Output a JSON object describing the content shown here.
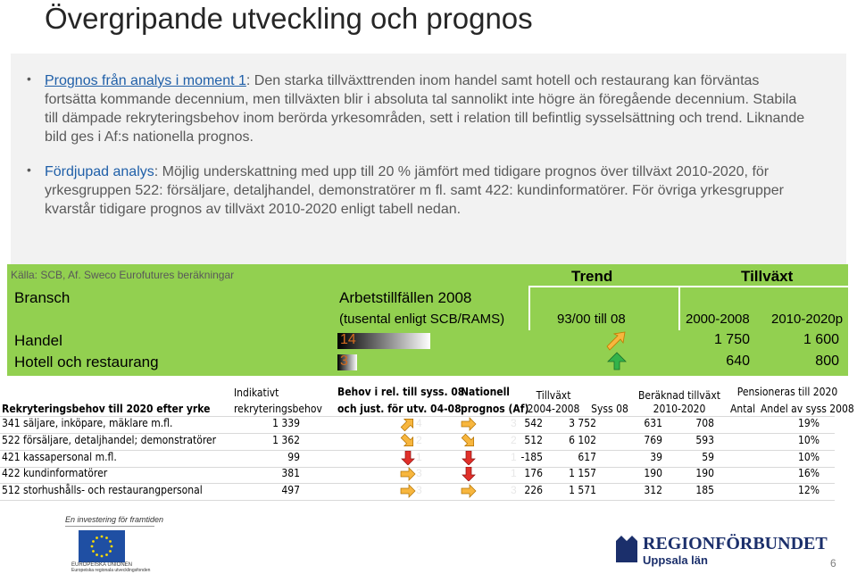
{
  "title": "Övergripande utveckling och prognos",
  "bullets": [
    {
      "lead": "Prognos från analys i moment 1",
      "text": ": Den starka tillväxttrenden inom handel samt hotell och restaurang kan förväntas fortsätta kommande decennium, men tillväxten blir i absoluta tal sannolikt inte högre än föregående decennium. Stabila till dämpade rekryteringsbehov inom berörda yrkesområden, sett i relation till befintlig sysselsättning och trend. Liknande bild ges i Af:s nationella prognos."
    },
    {
      "lead": "Fördjupad analys",
      "text": ": Möjlig underskattning med upp till 20 % jämfört med tidigare prognos över tillväxt 2010-2020, för yrkesgruppen 522: försäljare, detaljhandel, demonstratörer m fl. samt 422: kundinformatörer. För övriga yrkesgrupper kvarstår tidigare prognos av tillväxt 2010-2020 enligt tabell nedan."
    }
  ],
  "source": "Källa: SCB, Af. Sweco Eurofutures beräkningar",
  "sector_table": {
    "header_trend": "Trend",
    "header_growth": "Tillväxt",
    "col_bransch": "Bransch",
    "col_jobs": "Arbetstillfällen 2008",
    "col_jobs_unit": "(tusental enligt SCB/RAMS)",
    "col_trend": "93/00 till 08",
    "col_growth_1": "2000-2008",
    "col_growth_2": "2010-2020p",
    "rows": [
      {
        "name": "Handel",
        "jobs": 14,
        "growth_1": "1 750",
        "growth_2": "1 600"
      },
      {
        "name": "Hotell och restaurang",
        "jobs": 3,
        "growth_1": "640",
        "growth_2": "800"
      }
    ]
  },
  "recruit_table": {
    "header_occupation": "Rekryteringsbehov till 2020 efter yrke",
    "header_indicative": [
      "Indikativt",
      "rekryteringsbehov"
    ],
    "header_need": [
      "Behov i rel. till syss. 08",
      "och just. för utv. 04-08"
    ],
    "header_national": [
      "Nationell",
      "prognos (Af)"
    ],
    "header_growth": [
      "Tillväxt",
      "2004-2008"
    ],
    "header_employed": "Syss 08",
    "header_forecast": [
      "Beräknad tillväxt",
      "2010-2020"
    ],
    "header_retire": "Pensioneras till 2020",
    "header_retire_count": "Antal",
    "header_retire_share": "Andel av syss 2008",
    "rows": [
      {
        "name": "341 säljare, inköpare, mäklare m.fl.",
        "indicative": "1 339",
        "need": 4,
        "national": 3,
        "growth": "542",
        "employed": "3 752",
        "forecast": "631",
        "retire_count": "708",
        "retire_share": "19%"
      },
      {
        "name": "522 försäljare, detaljhandel; demonstratörer",
        "indicative": "1 362",
        "need": 2,
        "national": 2,
        "growth": "512",
        "employed": "6 102",
        "forecast": "769",
        "retire_count": "593",
        "retire_share": "10%"
      },
      {
        "name": "421 kassapersonal m.fl.",
        "indicative": "99",
        "need": 1,
        "national": 1,
        "growth": "-185",
        "employed": "617",
        "forecast": "39",
        "retire_count": "59",
        "retire_share": "10%"
      },
      {
        "name": "422 kundinformatörer",
        "indicative": "381",
        "need": 3,
        "national": 1,
        "growth": "176",
        "employed": "1 157",
        "forecast": "190",
        "retire_count": "190",
        "retire_share": "16%"
      },
      {
        "name": "512 storhushålls- och restaurangpersonal",
        "indicative": "497",
        "need": 3,
        "national": 3,
        "growth": "226",
        "employed": "1 571",
        "forecast": "312",
        "retire_count": "185",
        "retire_share": "12%"
      }
    ]
  },
  "footer": {
    "eu_slogan": "En investering för framtiden",
    "eu_name": "EUROPEISKA UNIONEN",
    "eu_fund": "Europeiska regionala utvecklingsfonden",
    "org": "REGIONFÖRBUNDET",
    "org_sub": "Uppsala län",
    "page": "6"
  }
}
